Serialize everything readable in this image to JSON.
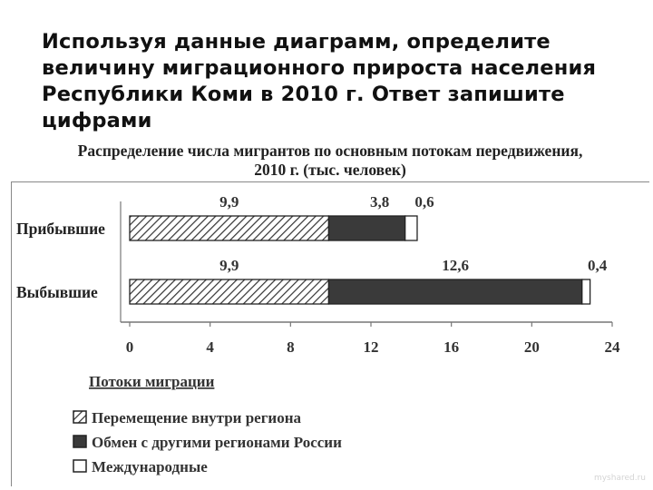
{
  "question": {
    "text": "Используя данные диаграмм, определите величину миграционного прироста населения Республики Коми в 2010 г. Ответ запишите цифрами"
  },
  "chart_data": {
    "type": "bar",
    "orientation": "horizontal",
    "stacked": true,
    "title_line1": "Распределение числа мигрантов по основным потокам передвижения,",
    "title_line2": "2010 г. (тыс. человек)",
    "categories": [
      "Прибывшие",
      "Выбывшие"
    ],
    "series": [
      {
        "name": "Перемещение внутри региона",
        "values": [
          9.9,
          9.9
        ],
        "labels": [
          "9,9",
          "9,9"
        ],
        "pattern": "hatch"
      },
      {
        "name": "Обмен с другими регионами России",
        "values": [
          3.8,
          12.6
        ],
        "labels": [
          "3,8",
          "12,6"
        ],
        "pattern": "solid",
        "color": "#3a3a3a"
      },
      {
        "name": "Международные",
        "values": [
          0.6,
          0.4
        ],
        "labels": [
          "0,6",
          "0,4"
        ],
        "pattern": "empty",
        "color": "#ffffff"
      }
    ],
    "xlim": [
      0,
      24
    ],
    "xticks": [
      0,
      4,
      8,
      12,
      16,
      20,
      24
    ],
    "xtick_labels": [
      "0",
      "4",
      "8",
      "12",
      "16",
      "20",
      "24"
    ],
    "grid": false,
    "legend_title": "Потоки миграции",
    "legend_position": "bottom-left"
  },
  "watermark": "myshared.ru"
}
